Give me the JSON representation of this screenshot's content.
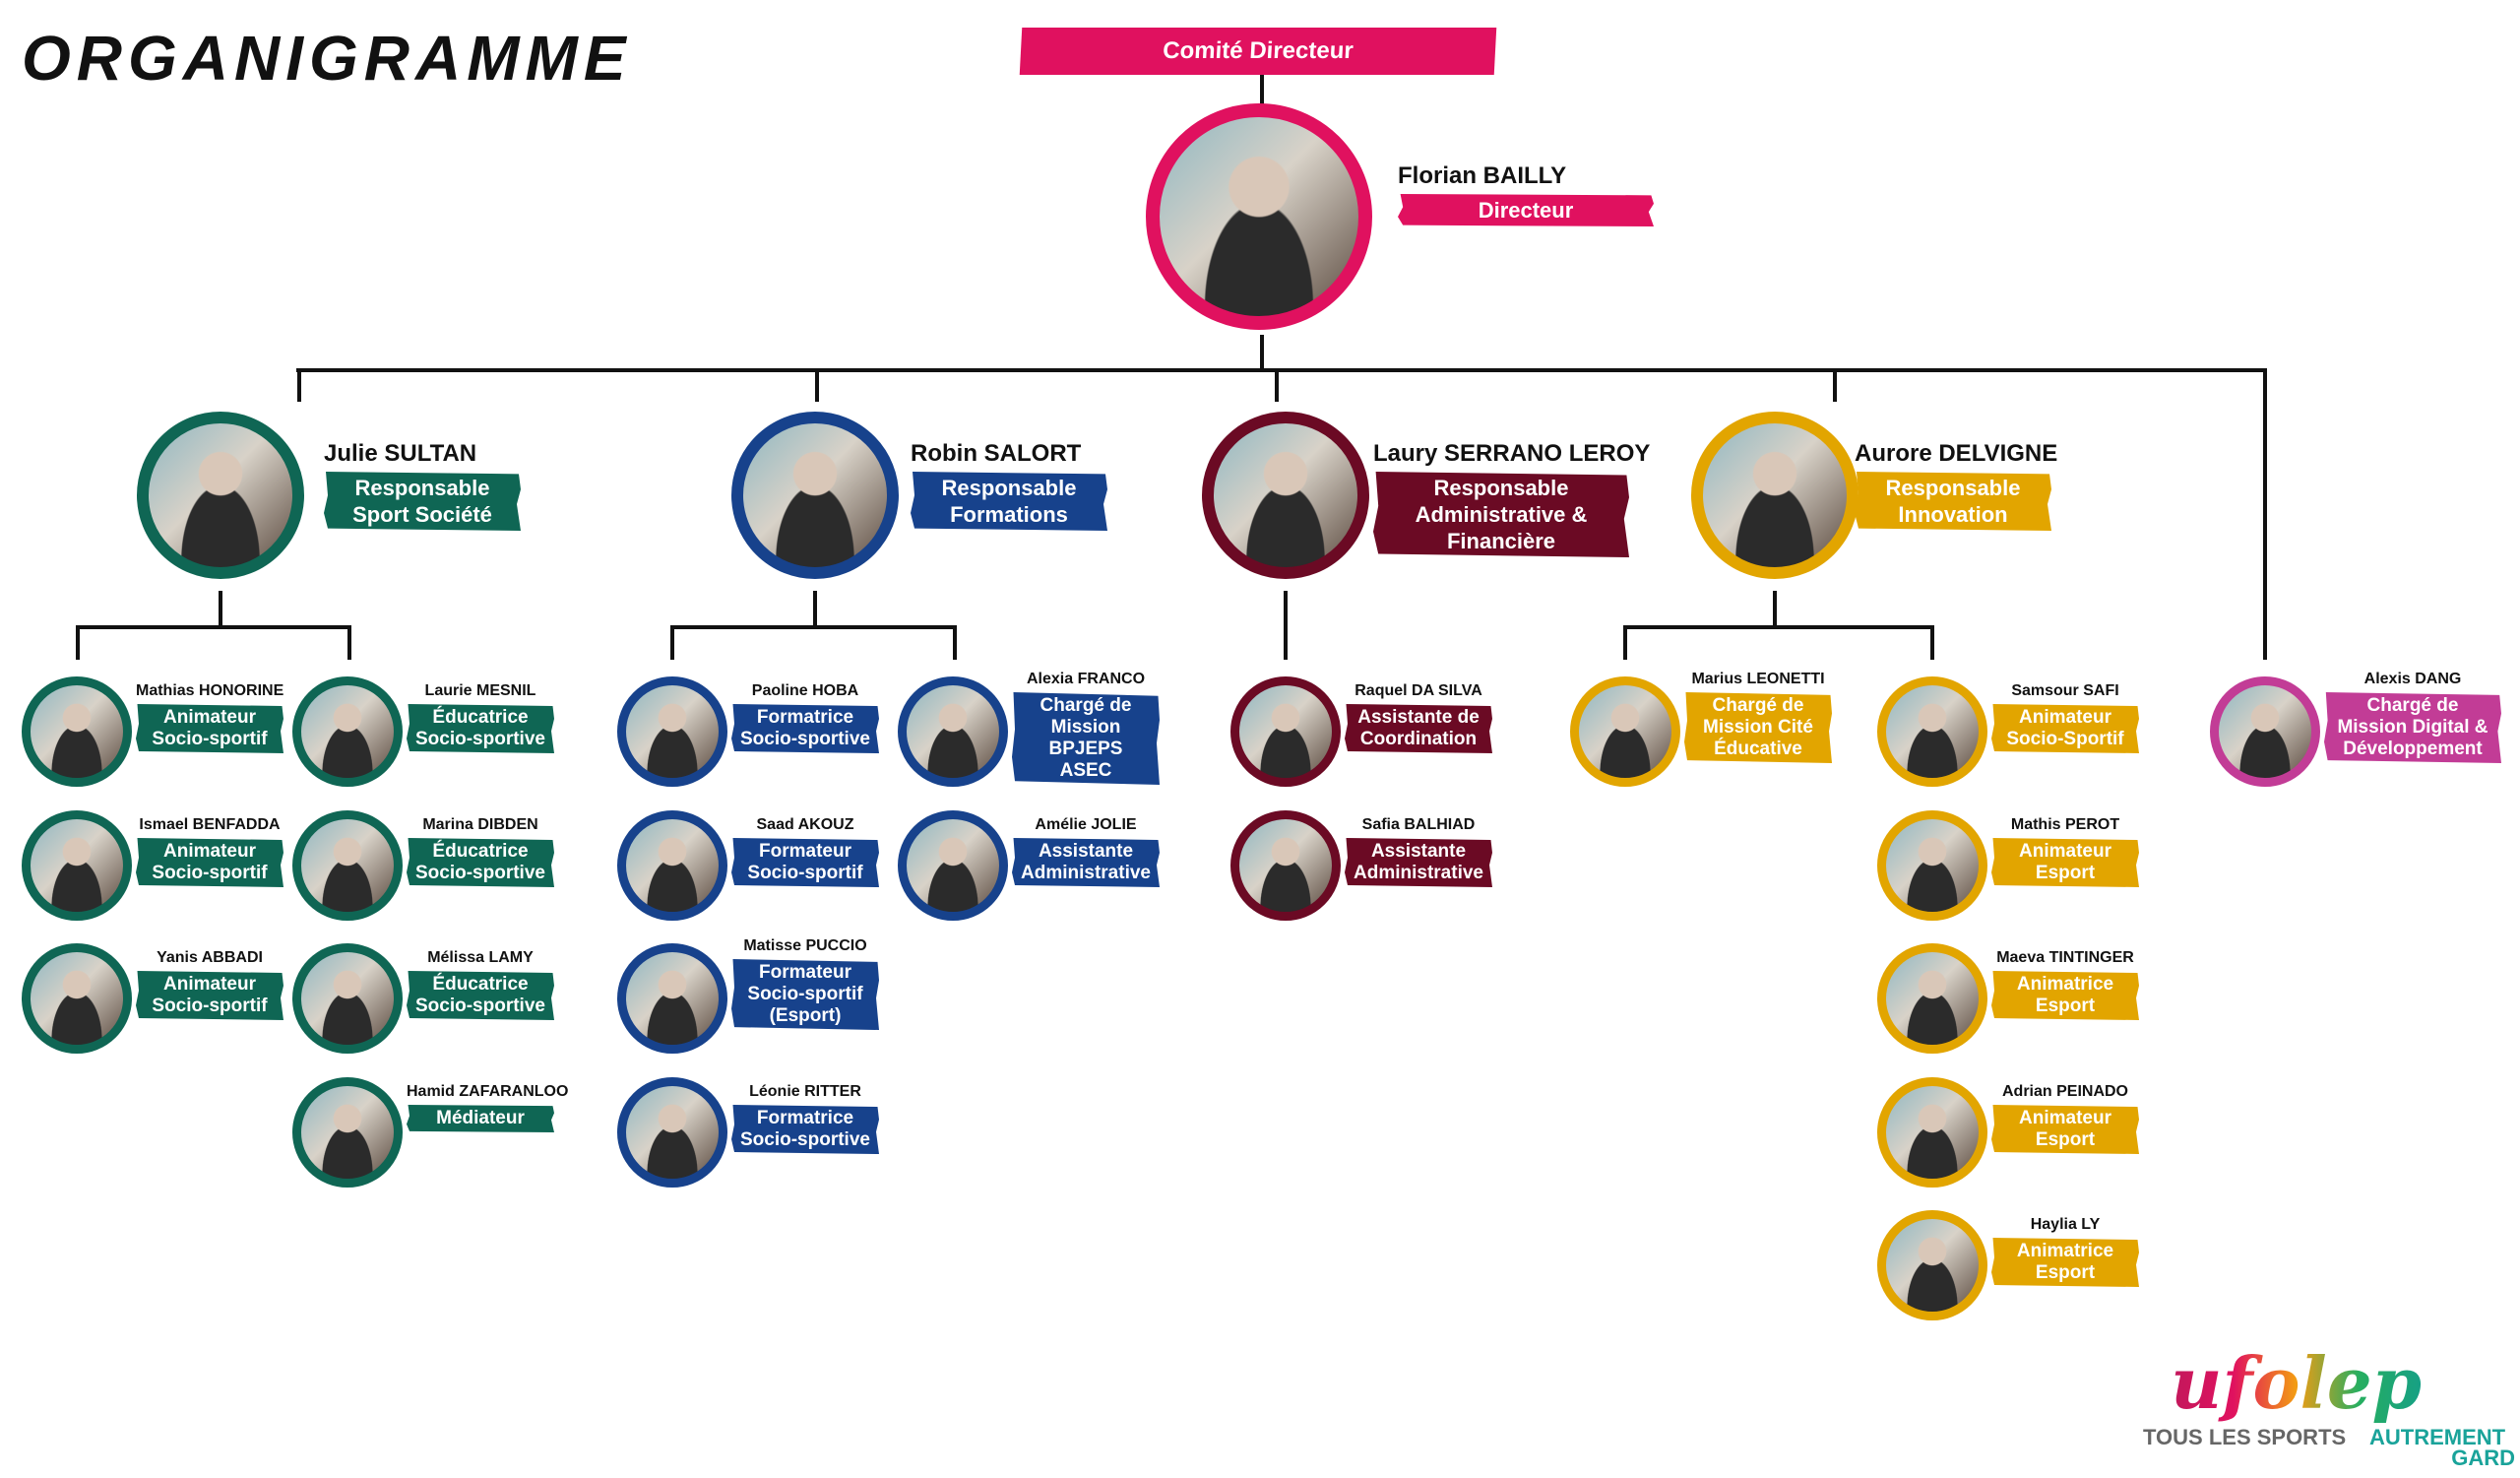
{
  "title": "ORGANIGRAMME",
  "committee_label": "Comité Directeur",
  "director": {
    "name": "Florian BAILLY",
    "role": "Directeur",
    "color": "#e0115f"
  },
  "departments": [
    {
      "name": "Julie SULTAN",
      "role": "Responsable\nSport Société",
      "color": "#0f6654",
      "staff": [
        {
          "name": "Mathias HONORINE",
          "role": "Animateur\nSocio-sportif"
        },
        {
          "name": "Laurie MESNIL",
          "role": "Éducatrice\nSocio-sportive"
        },
        {
          "name": "Ismael BENFADDA",
          "role": "Animateur\nSocio-sportif"
        },
        {
          "name": "Marina DIBDEN",
          "role": "Éducatrice\nSocio-sportive"
        },
        {
          "name": "Yanis ABBADI",
          "role": "Animateur\nSocio-sportif"
        },
        {
          "name": "Mélissa LAMY",
          "role": "Éducatrice\nSocio-sportive"
        },
        {
          "name": "Hamid ZAFARANLOO",
          "role": "Médiateur"
        }
      ]
    },
    {
      "name": "Robin SALORT",
      "role": "Responsable\nFormations",
      "color": "#17428c",
      "staff": [
        {
          "name": "Paoline HOBA",
          "role": "Formatrice\nSocio-sportive"
        },
        {
          "name": "Alexia FRANCO",
          "role": "Chargé de\nMission BPJEPS\nASEC"
        },
        {
          "name": "Saad AKOUZ",
          "role": "Formateur\nSocio-sportif"
        },
        {
          "name": "Amélie JOLIE",
          "role": "Assistante\nAdministrative"
        },
        {
          "name": "Matisse PUCCIO",
          "role": "Formateur\nSocio-sportif\n(Esport)"
        },
        {
          "name": "Léonie RITTER",
          "role": "Formatrice\nSocio-sportive"
        }
      ]
    },
    {
      "name": "Laury SERRANO LEROY",
      "role": "Responsable\nAdministrative &\nFinancière",
      "color": "#6b0a24",
      "staff": [
        {
          "name": "Raquel DA SILVA",
          "role": "Assistante de\nCoordination"
        },
        {
          "name": "Safia BALHIAD",
          "role": "Assistante\nAdministrative"
        }
      ]
    },
    {
      "name": "Aurore DELVIGNE",
      "role": "Responsable\nInnovation",
      "color": "#e2a500",
      "staff": [
        {
          "name": "Marius LEONETTI",
          "role": "Chargé de\nMission Cité\nÉducative"
        },
        {
          "name": "Samsour SAFI",
          "role": "Animateur\nSocio-Sportif"
        },
        {
          "name": "Mathis PEROT",
          "role": "Animateur\nEsport"
        },
        {
          "name": "Maeva TINTINGER",
          "role": "Animatrice\nEsport"
        },
        {
          "name": "Adrian PEINADO",
          "role": "Animateur\nEsport"
        },
        {
          "name": "Haylia LY",
          "role": "Animatrice\nEsport"
        }
      ]
    }
  ],
  "direct_reports": [
    {
      "name": "Alexis DANG",
      "role": "Chargé de\nMission Digital &\nDéveloppement",
      "color": "#c23c96"
    }
  ],
  "logo": {
    "word": "ufolep",
    "tagline_1": "TOUS LES SPORTS",
    "tagline_2": "AUTREMENT",
    "tagline_3": "GARD"
  }
}
